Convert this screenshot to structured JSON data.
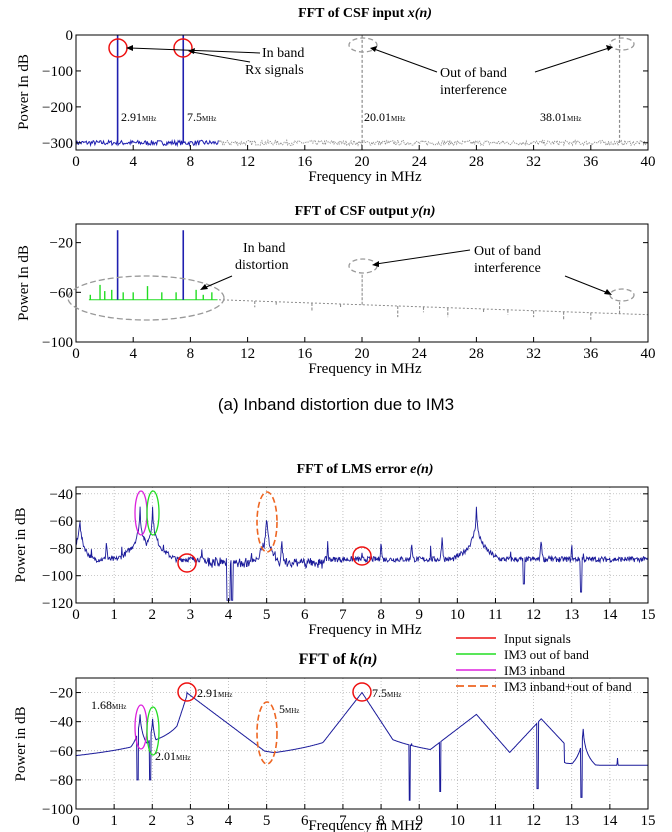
{
  "colors": {
    "input": "#1f1fb0",
    "outband": "#8c8c8c",
    "green": "#22dd22",
    "magenta": "#dd22dd",
    "red": "#ee1111",
    "orange": "#ee6622",
    "navy": "#1a1a9a"
  },
  "caption_a": "(a) Inband distortion due to IM3",
  "legend": {
    "items": [
      {
        "label": "Input signals",
        "color": "#ee1111",
        "dash": false
      },
      {
        "label": "IM3 out of band",
        "color": "#22dd22",
        "dash": false
      },
      {
        "label": "IM3 inband",
        "color": "#dd22dd",
        "dash": false
      },
      {
        "label": "IM3 inband+out of band",
        "color": "#ee6622",
        "dash": true
      }
    ]
  },
  "chart_data": [
    {
      "type": "line",
      "title": "FFT of CSF input",
      "title_var": "x(n)",
      "xlabel": "Frequency in MHz",
      "ylabel": "Power In dB",
      "xlim": [
        0,
        40
      ],
      "ylim": [
        -320,
        0
      ],
      "xticks": [
        0,
        4,
        8,
        12,
        16,
        20,
        24,
        28,
        32,
        36,
        40
      ],
      "yticks": [
        0,
        -100,
        -200,
        -300
      ],
      "noise_floor": -300,
      "series": [
        {
          "color": "input",
          "range": [
            0,
            10
          ],
          "peaks": [
            {
              "x": 2.91,
              "y": 0
            },
            {
              "x": 7.5,
              "y": 0
            }
          ]
        },
        {
          "color": "outband",
          "range": [
            10,
            40
          ],
          "dotted": true,
          "peaks": [
            {
              "x": 20.01,
              "y": 0
            },
            {
              "x": 38.01,
              "y": 0
            }
          ]
        }
      ],
      "peak_labels": [
        {
          "value": "2.91",
          "unit": "MHz"
        },
        {
          "value": "7.5",
          "unit": "MHz"
        },
        {
          "value": "20.01",
          "unit": "MHz"
        },
        {
          "value": "38.01",
          "unit": "MHz"
        }
      ],
      "annotations": [
        {
          "lines": [
            "In band",
            "Rx signals"
          ]
        },
        {
          "lines": [
            "Out of band",
            "interference"
          ]
        }
      ]
    },
    {
      "type": "line",
      "title": "FFT of CSF output",
      "title_var": "y(n)",
      "xlabel": "Frequency in MHz",
      "ylabel": "Power In dB",
      "xlim": [
        0,
        40
      ],
      "ylim": [
        -100,
        -5
      ],
      "xticks": [
        0,
        4,
        8,
        12,
        16,
        20,
        24,
        28,
        32,
        36,
        40
      ],
      "yticks": [
        -20,
        -60,
        -100
      ],
      "series": [
        {
          "color": "input",
          "peaks": [
            {
              "x": 2.91,
              "y": -10
            },
            {
              "x": 7.5,
              "y": -10
            }
          ]
        },
        {
          "color": "green",
          "baseline": -66,
          "peaks": [
            {
              "x": 1.0,
              "y": -62
            },
            {
              "x": 1.68,
              "y": -54
            },
            {
              "x": 2.01,
              "y": -59
            },
            {
              "x": 2.5,
              "y": -58
            },
            {
              "x": 3.3,
              "y": -60
            },
            {
              "x": 4.0,
              "y": -60
            },
            {
              "x": 5.0,
              "y": -55
            },
            {
              "x": 6.0,
              "y": -60
            },
            {
              "x": 7.0,
              "y": -60
            },
            {
              "x": 8.4,
              "y": -58
            },
            {
              "x": 8.9,
              "y": -62
            },
            {
              "x": 9.5,
              "y": -60
            }
          ]
        },
        {
          "color": "outband",
          "dotted": true,
          "baseline_start": -66,
          "baseline_end": -78,
          "peaks": [
            {
              "x": 12.5,
              "y": -72
            },
            {
              "x": 14.0,
              "y": -70
            },
            {
              "x": 16.5,
              "y": -75
            },
            {
              "x": 18.5,
              "y": -73
            },
            {
              "x": 20.01,
              "y": -45
            },
            {
              "x": 22.5,
              "y": -80
            },
            {
              "x": 24.3,
              "y": -76
            },
            {
              "x": 26.0,
              "y": -80
            },
            {
              "x": 28.5,
              "y": -77
            },
            {
              "x": 30.2,
              "y": -78
            },
            {
              "x": 32.0,
              "y": -80
            },
            {
              "x": 34.1,
              "y": -82
            },
            {
              "x": 36.0,
              "y": -82
            },
            {
              "x": 38.01,
              "y": -68
            }
          ]
        }
      ],
      "annotations": [
        {
          "lines": [
            "In band",
            "distortion"
          ]
        },
        {
          "lines": [
            "Out of band",
            "interference"
          ]
        }
      ]
    },
    {
      "type": "line",
      "title": "FFT of LMS error",
      "title_var": "e(n)",
      "xlabel": "Frequency in MHz",
      "ylabel": "Power in dB",
      "xlim": [
        0,
        15
      ],
      "ylim": [
        -120,
        -35
      ],
      "xticks": [
        0,
        1,
        2,
        3,
        4,
        5,
        6,
        7,
        8,
        9,
        10,
        11,
        12,
        13,
        14,
        15
      ],
      "yticks": [
        -40,
        -60,
        -80,
        -100,
        -120
      ],
      "grid": true,
      "series": [
        {
          "color": "navy",
          "baseline": -88,
          "peaks": [
            {
              "x": 0.1,
              "y": -55
            },
            {
              "x": 0.4,
              "y": -78
            },
            {
              "x": 0.8,
              "y": -72
            },
            {
              "x": 1.2,
              "y": -78
            },
            {
              "x": 1.68,
              "y": -50
            },
            {
              "x": 2.01,
              "y": -50
            },
            {
              "x": 2.3,
              "y": -75
            },
            {
              "x": 2.91,
              "y": -90
            },
            {
              "x": 3.3,
              "y": -82
            },
            {
              "x": 4.6,
              "y": -75
            },
            {
              "x": 5.0,
              "y": -54
            },
            {
              "x": 5.4,
              "y": -70
            },
            {
              "x": 5.9,
              "y": -82
            },
            {
              "x": 6.6,
              "y": -75
            },
            {
              "x": 7.5,
              "y": -85
            },
            {
              "x": 8.0,
              "y": -72
            },
            {
              "x": 8.8,
              "y": -72
            },
            {
              "x": 9.3,
              "y": -78
            },
            {
              "x": 9.6,
              "y": -70
            },
            {
              "x": 10.5,
              "y": -50
            },
            {
              "x": 11.4,
              "y": -82
            },
            {
              "x": 12.2,
              "y": -70
            },
            {
              "x": 12.4,
              "y": -80
            },
            {
              "x": 13.0,
              "y": -75
            },
            {
              "x": 13.3,
              "y": -80
            }
          ]
        }
      ]
    },
    {
      "type": "line",
      "title": "FFT of",
      "title_var": "k(n)",
      "xlabel": "Frequency in MHz",
      "ylabel": "Power in dB",
      "xlim": [
        0,
        15
      ],
      "ylim": [
        -100,
        -10
      ],
      "xticks": [
        0,
        1,
        2,
        3,
        4,
        5,
        6,
        7,
        8,
        9,
        10,
        11,
        12,
        13,
        14,
        15
      ],
      "yticks": [
        -20,
        -40,
        -60,
        -80,
        -100
      ],
      "grid": true,
      "series": [
        {
          "color": "navy",
          "peaks": [
            {
              "x": 1.68,
              "y": -35
            },
            {
              "x": 2.01,
              "y": -38
            },
            {
              "x": 2.91,
              "y": -20
            },
            {
              "x": 7.5,
              "y": -20
            },
            {
              "x": 8.8,
              "y": -55
            },
            {
              "x": 9.6,
              "y": -55
            },
            {
              "x": 10.5,
              "y": -35
            },
            {
              "x": 12.2,
              "y": -38
            },
            {
              "x": 13.3,
              "y": -45
            },
            {
              "x": 14.2,
              "y": -65
            }
          ]
        }
      ],
      "peak_labels": [
        {
          "value": "1.68",
          "unit": "MHz"
        },
        {
          "value": "2.01",
          "unit": "MHz"
        },
        {
          "value": "2.91",
          "unit": "MHz"
        },
        {
          "value": "5",
          "unit": "MHz"
        },
        {
          "value": "7.5",
          "unit": "MHz"
        }
      ]
    }
  ]
}
